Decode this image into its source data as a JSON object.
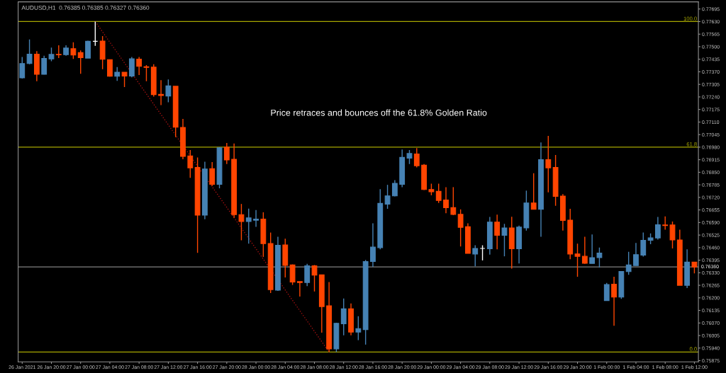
{
  "chart_data": {
    "type": "candlestick",
    "title": "AUDUSD,H1  0.76385 0.76385 0.76327 0.76360",
    "annotations": [
      "Price retraces and bounces off the 61.8% Golden Ratio",
      {
        "text": "100.0",
        "y": 0.7763
      },
      {
        "text": "61.8",
        "y": 0.7698
      },
      {
        "text": "0.0",
        "y": 0.7592
      }
    ],
    "categories": [
      "26 Jan 2021",
      null,
      null,
      null,
      "26 Jan 20:00",
      null,
      null,
      null,
      "27 Jan 00:00",
      null,
      null,
      null,
      "27 Jan 04:00",
      null,
      null,
      null,
      "27 Jan 08:00",
      null,
      null,
      null,
      "27 Jan 12:00",
      null,
      null,
      null,
      "27 Jan 16:00",
      null,
      null,
      null,
      "27 Jan 20:00",
      null,
      null,
      null,
      "28 Jan 00:00",
      null,
      null,
      null,
      "28 Jan 04:00",
      null,
      null,
      null,
      "28 Jan 08:00",
      null,
      null,
      null,
      "28 Jan 12:00",
      null,
      null,
      null,
      "28 Jan 16:00",
      null,
      null,
      null,
      "28 Jan 20:00",
      null,
      null,
      null,
      "29 Jan 00:00",
      null,
      null,
      null,
      "29 Jan 04:00",
      null,
      null,
      null,
      "29 Jan 08:00",
      null,
      null,
      null,
      "29 Jan 12:00",
      null,
      null,
      null,
      "29 Jan 16:00",
      null,
      null,
      null,
      "29 Jan 20:00",
      null,
      null,
      null,
      "1 Feb 00:00",
      null,
      null,
      null,
      "1 Feb 04:00",
      null,
      null,
      null,
      "1 Feb 08:00",
      null,
      null,
      null,
      "1 Feb 12:00"
    ],
    "ohlc": [
      [
        0.77339,
        0.77447,
        0.77335,
        0.77413
      ],
      [
        0.77413,
        0.77537,
        0.77409,
        0.77461
      ],
      [
        0.77461,
        0.77477,
        0.77321,
        0.77357
      ],
      [
        0.77357,
        0.77453,
        0.77356,
        0.77439
      ],
      [
        0.77437,
        0.77495,
        0.77425,
        0.7746
      ],
      [
        0.7746,
        0.77507,
        0.77441,
        0.77458
      ],
      [
        0.77459,
        0.77507,
        0.77453,
        0.77493
      ],
      [
        0.7749,
        0.77523,
        0.77437,
        0.77457
      ],
      [
        0.77469,
        0.77481,
        0.7736,
        0.77443
      ],
      [
        0.77441,
        0.77531,
        0.77441,
        0.77528
      ],
      [
        0.77528,
        0.7763,
        0.77504,
        0.77528
      ],
      [
        0.77529,
        0.77555,
        0.77384,
        0.77435
      ],
      [
        0.77433,
        0.77433,
        0.77345,
        0.77347
      ],
      [
        0.77347,
        0.77395,
        0.77323,
        0.77368
      ],
      [
        0.77368,
        0.77368,
        0.77291,
        0.77348
      ],
      [
        0.77348,
        0.77447,
        0.77341,
        0.77437
      ],
      [
        0.77436,
        0.77447,
        0.77353,
        0.77398
      ],
      [
        0.77396,
        0.77405,
        0.77321,
        0.77393
      ],
      [
        0.77394,
        0.77409,
        0.77242,
        0.77252
      ],
      [
        0.77253,
        0.77327,
        0.77198,
        0.77247
      ],
      [
        0.77245,
        0.7733,
        0.77212,
        0.77297
      ],
      [
        0.77295,
        0.77295,
        0.77032,
        0.77083
      ],
      [
        0.77082,
        0.77126,
        0.76917,
        0.76932
      ],
      [
        0.76935,
        0.76965,
        0.76821,
        0.76873
      ],
      [
        0.76875,
        0.76927,
        0.76433,
        0.76628
      ],
      [
        0.76628,
        0.76905,
        0.76607,
        0.76867
      ],
      [
        0.76869,
        0.76903,
        0.76779,
        0.76788
      ],
      [
        0.76788,
        0.7698,
        0.76767,
        0.76977
      ],
      [
        0.7698,
        0.77002,
        0.76893,
        0.76914
      ],
      [
        0.76917,
        0.76999,
        0.76614,
        0.76631
      ],
      [
        0.76631,
        0.76686,
        0.76498,
        0.76595
      ],
      [
        0.76595,
        0.76662,
        0.76481,
        0.76614
      ],
      [
        0.76602,
        0.76655,
        0.76568,
        0.76608
      ],
      [
        0.76608,
        0.76643,
        0.76412,
        0.76481
      ],
      [
        0.76481,
        0.76538,
        0.76225,
        0.76243
      ],
      [
        0.7624,
        0.76516,
        0.76236,
        0.76472
      ],
      [
        0.76474,
        0.76506,
        0.76306,
        0.76368
      ],
      [
        0.7637,
        0.76373,
        0.76267,
        0.76282
      ],
      [
        0.76284,
        0.76284,
        0.76207,
        0.76279
      ],
      [
        0.76279,
        0.76376,
        0.76261,
        0.76366
      ],
      [
        0.76366,
        0.7637,
        0.76233,
        0.76318
      ],
      [
        0.76319,
        0.76319,
        0.7602,
        0.76155
      ],
      [
        0.76159,
        0.76282,
        0.7592,
        0.75936
      ],
      [
        0.75936,
        0.76071,
        0.7592,
        0.76068
      ],
      [
        0.76066,
        0.76197,
        0.76006,
        0.76143
      ],
      [
        0.76143,
        0.76171,
        0.76006,
        0.76023
      ],
      [
        0.76023,
        0.76105,
        0.75981,
        0.76041
      ],
      [
        0.76036,
        0.76396,
        0.75958,
        0.76388
      ],
      [
        0.76388,
        0.76586,
        0.76361,
        0.76463
      ],
      [
        0.7646,
        0.76763,
        0.76451,
        0.76689
      ],
      [
        0.76685,
        0.76785,
        0.76661,
        0.76728
      ],
      [
        0.76728,
        0.76809,
        0.76725,
        0.76793
      ],
      [
        0.76788,
        0.76968,
        0.76773,
        0.76927
      ],
      [
        0.76923,
        0.76965,
        0.76893,
        0.76947
      ],
      [
        0.76945,
        0.76975,
        0.76875,
        0.76884
      ],
      [
        0.76887,
        0.76893,
        0.76758,
        0.76761
      ],
      [
        0.76761,
        0.76791,
        0.76731,
        0.76749
      ],
      [
        0.76751,
        0.76791,
        0.76691,
        0.76704
      ],
      [
        0.76707,
        0.76773,
        0.76638,
        0.76667
      ],
      [
        0.76667,
        0.76773,
        0.76628,
        0.76632
      ],
      [
        0.76632,
        0.76658,
        0.76466,
        0.76565
      ],
      [
        0.76568,
        0.76586,
        0.7643,
        0.7643
      ],
      [
        0.76427,
        0.76472,
        0.76363,
        0.76456
      ],
      [
        0.76456,
        0.76472,
        0.76394,
        0.76456
      ],
      [
        0.76454,
        0.76619,
        0.76424,
        0.76592
      ],
      [
        0.76592,
        0.76631,
        0.76451,
        0.76524
      ],
      [
        0.76524,
        0.76583,
        0.76415,
        0.76562
      ],
      [
        0.76562,
        0.7662,
        0.76351,
        0.76454
      ],
      [
        0.76454,
        0.76574,
        0.76378,
        0.76566
      ],
      [
        0.76562,
        0.76755,
        0.76548,
        0.76691
      ],
      [
        0.76691,
        0.76845,
        0.76658,
        0.76658
      ],
      [
        0.76658,
        0.77004,
        0.76516,
        0.76915
      ],
      [
        0.76915,
        0.77038,
        0.76746,
        0.76873
      ],
      [
        0.76875,
        0.76939,
        0.76677,
        0.76725
      ],
      [
        0.76727,
        0.76737,
        0.76548,
        0.76601
      ],
      [
        0.76602,
        0.76661,
        0.764,
        0.76427
      ],
      [
        0.76427,
        0.76481,
        0.76309,
        0.76415
      ],
      [
        0.76415,
        0.76516,
        0.76376,
        0.76379
      ],
      [
        0.76378,
        0.76528,
        0.76378,
        0.76408
      ],
      [
        0.76408,
        0.7646,
        0.76357,
        0.76432
      ],
      [
        0.76186,
        0.76277,
        0.76186,
        0.76269
      ],
      [
        0.76271,
        0.76309,
        0.76056,
        0.76204
      ],
      [
        0.76204,
        0.76339,
        0.76195,
        0.76337
      ],
      [
        0.76336,
        0.76438,
        0.76319,
        0.7637
      ],
      [
        0.76367,
        0.76484,
        0.76367,
        0.76424
      ],
      [
        0.76421,
        0.76538,
        0.76414,
        0.76498
      ],
      [
        0.76498,
        0.76534,
        0.76478,
        0.76511
      ],
      [
        0.7651,
        0.76619,
        0.76502,
        0.76578
      ],
      [
        0.76577,
        0.76622,
        0.76553,
        0.76574
      ],
      [
        0.76577,
        0.76595,
        0.76456,
        0.765
      ],
      [
        0.765,
        0.76553,
        0.76265,
        0.76265
      ],
      [
        0.76265,
        0.76451,
        0.76251,
        0.76385
      ],
      [
        0.76385,
        0.76385,
        0.76327,
        0.7636
      ]
    ],
    "colors": [
      "#4682b4",
      "#4682b4",
      "#ff4500",
      "#4682b4",
      "#4682b4",
      "#ff4500",
      "#4682b4",
      "#ff4500",
      "#ff4500",
      "#4682b4",
      "#ffffff",
      "#ff4500",
      "#ff4500",
      "#4682b4",
      "#ff4500",
      "#4682b4",
      "#ff4500",
      "#ff4500",
      "#ff4500",
      "#ff4500",
      "#4682b4",
      "#ff4500",
      "#ff4500",
      "#ff4500",
      "#ff4500",
      "#4682b4",
      "#ff4500",
      "#4682b4",
      "#ff4500",
      "#ff4500",
      "#ff4500",
      "#4682b4",
      "#4682b4",
      "#ff4500",
      "#ff4500",
      "#4682b4",
      "#ff4500",
      "#ff4500",
      "#ff4500",
      "#4682b4",
      "#ff4500",
      "#ff4500",
      "#ff4500",
      "#4682b4",
      "#4682b4",
      "#ff4500",
      "#4682b4",
      "#4682b4",
      "#4682b4",
      "#4682b4",
      "#4682b4",
      "#4682b4",
      "#4682b4",
      "#4682b4",
      "#ff4500",
      "#ff4500",
      "#ff4500",
      "#ff4500",
      "#ff4500",
      "#ff4500",
      "#ff4500",
      "#ff4500",
      "#4682b4",
      "#ffffff",
      "#4682b4",
      "#ff4500",
      "#4682b4",
      "#ff4500",
      "#4682b4",
      "#4682b4",
      "#ff4500",
      "#4682b4",
      "#ff4500",
      "#ff4500",
      "#ff4500",
      "#ff4500",
      "#ff4500",
      "#ff4500",
      "#4682b4",
      "#4682b4",
      "#4682b4",
      "#ff4500",
      "#4682b4",
      "#4682b4",
      "#4682b4",
      "#4682b4",
      "#4682b4",
      "#4682b4",
      "#ff4500",
      "#ff4500",
      "#ff4500",
      "#4682b4",
      "#ff4500"
    ],
    "series": [
      {
        "type": "line",
        "values": [
          null,
          null,
          null,
          null,
          null,
          null,
          null,
          null,
          null,
          null,
          0.7763,
          null,
          null,
          null,
          null,
          null,
          null,
          null,
          null,
          null,
          null,
          null,
          null,
          null,
          null,
          null,
          null,
          null,
          null,
          null,
          null,
          null,
          null,
          null,
          null,
          null,
          null,
          null,
          null,
          null,
          null,
          null,
          0.7592,
          null,
          null,
          null,
          null,
          null,
          null,
          null,
          null,
          null,
          null,
          null,
          null,
          null,
          null,
          null,
          null,
          null,
          null,
          null,
          null,
          null,
          null,
          null,
          null,
          null,
          null,
          null,
          null,
          null,
          null,
          null,
          null,
          null,
          null,
          null,
          null,
          null,
          null,
          null,
          null,
          null,
          null,
          null,
          null,
          null,
          null,
          null,
          null,
          null,
          null
        ],
        "color": "#a01010",
        "line_style": "dotted"
      }
    ],
    "ref_lines": [
      {
        "axis": "y",
        "value": 0.7763,
        "color": "#a6a600"
      },
      {
        "axis": "y",
        "value": 0.7698,
        "color": "#a6a600"
      },
      {
        "axis": "y",
        "value": 0.7592,
        "color": "#a6a600"
      },
      {
        "axis": "y",
        "value": 0.7636,
        "label": "0.76360",
        "color": "#808080"
      }
    ],
    "ylim": [
      0.75869,
      0.77732
    ],
    "yticks": [
      {
        "value": 0.75875,
        "label": "0.75875"
      },
      {
        "value": 0.7594,
        "label": "0.75940"
      },
      {
        "value": 0.76005,
        "label": "0.76005"
      },
      {
        "value": 0.7607,
        "label": "0.76070"
      },
      {
        "value": 0.76135,
        "label": "0.76135"
      },
      {
        "value": 0.762,
        "label": "0.76200"
      },
      {
        "value": 0.76265,
        "label": "0.76265"
      },
      {
        "value": 0.7633,
        "label": "0.76330"
      },
      {
        "value": 0.76395,
        "label": "0.76395"
      },
      {
        "value": 0.7646,
        "label": "0.76460"
      },
      {
        "value": 0.76525,
        "label": "0.76525"
      },
      {
        "value": 0.7659,
        "label": "0.76590"
      },
      {
        "value": 0.76655,
        "label": "0.76655"
      },
      {
        "value": 0.7672,
        "label": "0.76720"
      },
      {
        "value": 0.76785,
        "label": "0.76785"
      },
      {
        "value": 0.7685,
        "label": "0.76850"
      },
      {
        "value": 0.76915,
        "label": "0.76915"
      },
      {
        "value": 0.7698,
        "label": "0.76980"
      },
      {
        "value": 0.77045,
        "label": "0.77045"
      },
      {
        "value": 0.7711,
        "label": "0.77110"
      },
      {
        "value": 0.77175,
        "label": "0.77175"
      },
      {
        "value": 0.7724,
        "label": "0.77240"
      },
      {
        "value": 0.77305,
        "label": "0.77305"
      },
      {
        "value": 0.7737,
        "label": "0.77370"
      },
      {
        "value": 0.77435,
        "label": "0.77435"
      },
      {
        "value": 0.775,
        "label": "0.77500"
      },
      {
        "value": 0.77565,
        "label": "0.77565"
      },
      {
        "value": 0.7763,
        "label": "0.77630"
      },
      {
        "value": 0.77695,
        "label": "0.77695"
      }
    ]
  }
}
